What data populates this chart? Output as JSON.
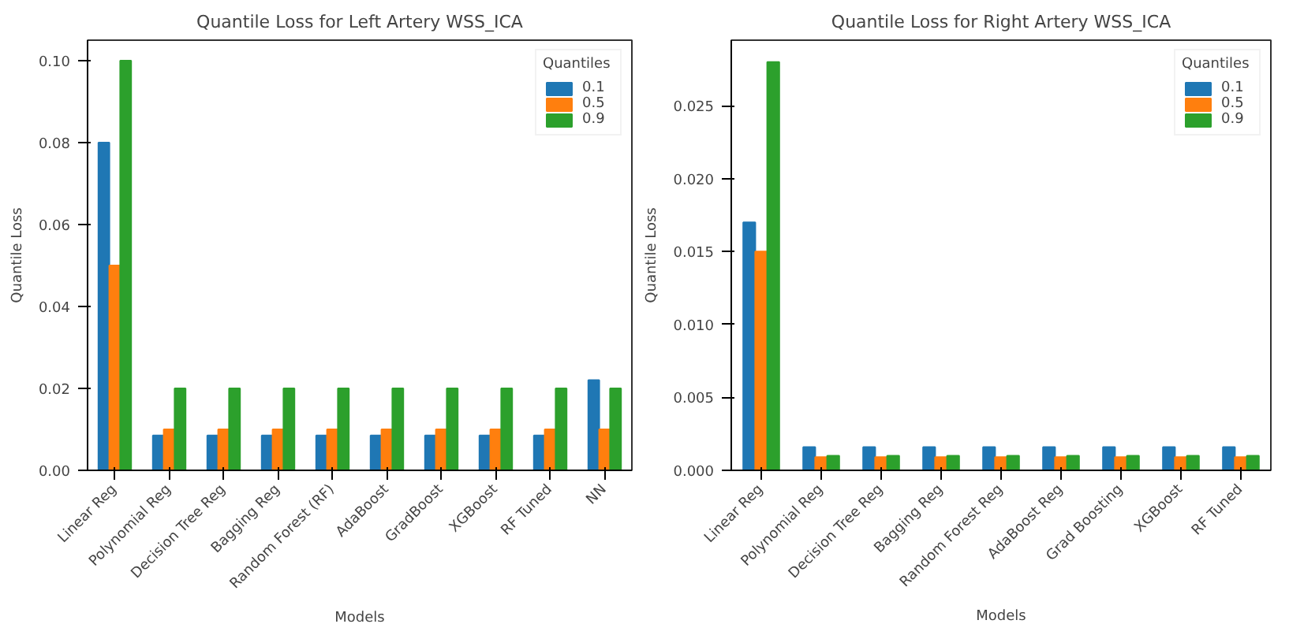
{
  "chart_data": [
    {
      "type": "bar",
      "title": "Quantile Loss for Left Artery WSS_ICA",
      "xlabel": "Models",
      "ylabel": "Quantile Loss",
      "legend_title": "Quantiles",
      "legend": "top right",
      "grid": false,
      "categories": [
        "Linear Reg",
        "Polynomial Reg",
        "Decision Tree Reg",
        "Bagging Reg",
        "Random Forest (RF)",
        "AdaBoost",
        "GradBoost",
        "XGBoost",
        "RF Tuned",
        "NN"
      ],
      "series": [
        {
          "name": "0.1",
          "color": "#1f77b4",
          "values": [
            0.08,
            0.0085,
            0.0085,
            0.0085,
            0.0085,
            0.0085,
            0.0085,
            0.0085,
            0.0085,
            0.022
          ]
        },
        {
          "name": "0.5",
          "color": "#ff7f0e",
          "values": [
            0.05,
            0.01,
            0.01,
            0.01,
            0.01,
            0.01,
            0.01,
            0.01,
            0.01,
            0.01
          ]
        },
        {
          "name": "0.9",
          "color": "#2ca02c",
          "values": [
            0.1,
            0.02,
            0.02,
            0.02,
            0.02,
            0.02,
            0.02,
            0.02,
            0.02,
            0.02
          ]
        }
      ],
      "ylim": [
        0,
        0.105
      ],
      "yticks": [
        {
          "value": 0,
          "label": "0.00"
        },
        0.02,
        0.04,
        0.06,
        0.08,
        {
          "value": 0.1,
          "label": "0.10"
        }
      ]
    },
    {
      "type": "bar",
      "title": "Quantile Loss for Right Artery WSS_ICA",
      "xlabel": "Models",
      "ylabel": "Quantile Loss",
      "legend_title": "Quantiles",
      "legend": "top right",
      "grid": false,
      "categories": [
        "Linear Reg",
        "Polynomial Reg",
        "Decision Tree Reg",
        "Bagging Reg",
        "Random Forest Reg",
        "AdaBoost Reg",
        "Grad Boosting",
        "XGBoost",
        "RF Tuned"
      ],
      "series": [
        {
          "name": "0.1",
          "color": "#1f77b4",
          "values": [
            0.017,
            0.0016,
            0.0016,
            0.0016,
            0.0016,
            0.0016,
            0.0016,
            0.0016,
            0.0016
          ]
        },
        {
          "name": "0.5",
          "color": "#ff7f0e",
          "values": [
            0.015,
            0.0009,
            0.0009,
            0.0009,
            0.0009,
            0.0009,
            0.0009,
            0.0009,
            0.0009
          ]
        },
        {
          "name": "0.9",
          "color": "#2ca02c",
          "values": [
            0.028,
            0.001,
            0.001,
            0.001,
            0.001,
            0.001,
            0.001,
            0.001,
            0.001
          ]
        }
      ],
      "ylim": [
        0,
        0.0295
      ],
      "yticks": [
        {
          "value": 0,
          "label": "0.000"
        },
        0.005,
        {
          "value": 0.01,
          "label": "0.010"
        },
        0.015,
        {
          "value": 0.02,
          "label": "0.020"
        },
        0.025
      ]
    }
  ]
}
